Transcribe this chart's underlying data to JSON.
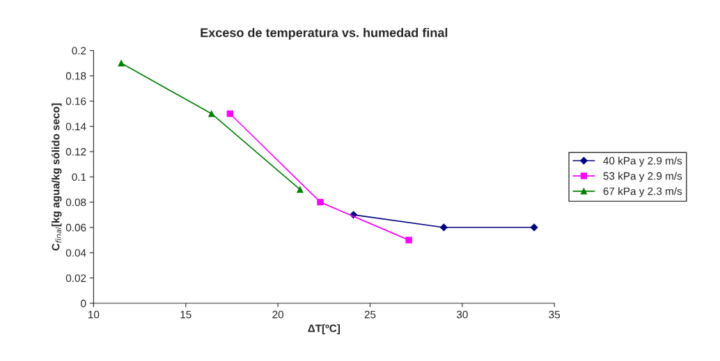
{
  "chart_data": {
    "type": "line",
    "title": "Exceso de temperatura vs. humedad final",
    "xlabel": "ΔT[ºC]",
    "ylabel": "C$_{final}$[kg agua/kg sólido seco]",
    "series": [
      {
        "name": "40 kPa y 2.9 m/s",
        "color": "#000080",
        "marker": "diamond",
        "x": [
          24.1,
          29.0,
          33.9
        ],
        "values": [
          0.07,
          0.06,
          0.06
        ]
      },
      {
        "name": "53 kPa y 2.9 m/s",
        "color": "#ff00ff",
        "marker": "square",
        "x": [
          17.4,
          22.3,
          27.1
        ],
        "values": [
          0.15,
          0.08,
          0.05
        ]
      },
      {
        "name": "67 kPa y 2.3 m/s",
        "color": "#008000",
        "marker": "triangle",
        "x": [
          11.5,
          16.4,
          21.2
        ],
        "values": [
          0.19,
          0.15,
          0.09
        ]
      }
    ],
    "xlim": [
      10,
      35
    ],
    "xticks": [
      10,
      15,
      20,
      25,
      30,
      35
    ],
    "ylim": [
      0,
      0.2
    ],
    "yticks": [
      0,
      0.02,
      0.04,
      0.06,
      0.08,
      0.1,
      0.12,
      0.14,
      0.16,
      0.18,
      0.2
    ],
    "grid": false,
    "legend": "right",
    "line_style": "solid"
  }
}
